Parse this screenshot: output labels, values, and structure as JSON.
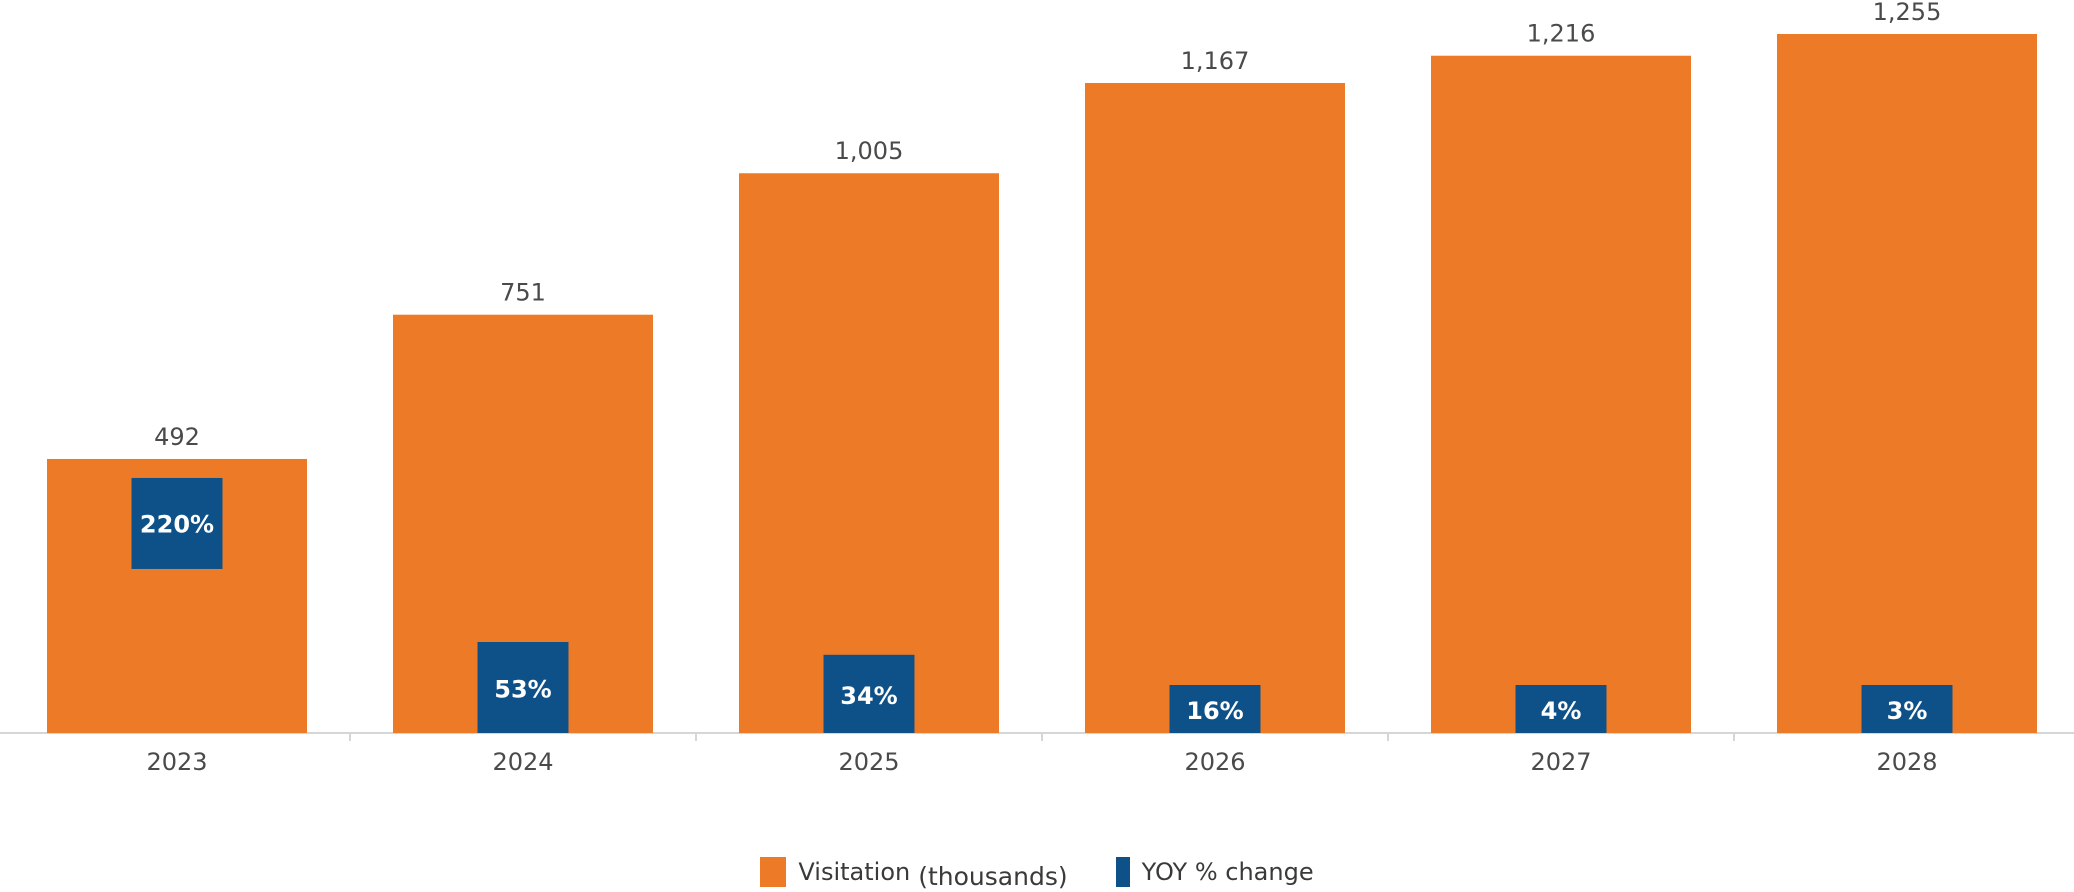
{
  "chart_data": {
    "type": "bar",
    "categories": [
      "2023",
      "2024",
      "2025",
      "2026",
      "2027",
      "2028"
    ],
    "series": [
      {
        "name": "Visitation (thousands)",
        "values": [
          492,
          751,
          1005,
          1167,
          1216,
          1255
        ],
        "data_labels": [
          "492",
          "751",
          "1,005",
          "1,167",
          "1,216",
          "1,255"
        ]
      },
      {
        "name": "YOY % change",
        "values": [
          220,
          53,
          34,
          16,
          4,
          3
        ],
        "data_labels": [
          "220%",
          "53%",
          "34%",
          "16%",
          "4%",
          "3%"
        ]
      }
    ],
    "ylim": [
      0,
      1255
    ],
    "grid": false,
    "legend_position": "bottom-center"
  },
  "legend": {
    "visitation_label": "Visitation",
    "visitation_unit": "(thousands)",
    "yoy_label": "YOY % change"
  },
  "colors": {
    "visitation": "#ED7A27",
    "yoy": "#0E5188",
    "label_text": "#4a4a4a"
  }
}
